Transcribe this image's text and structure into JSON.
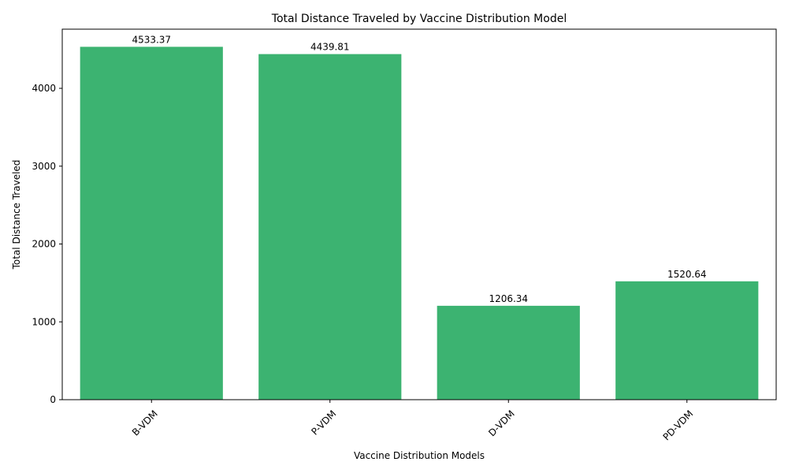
{
  "chart_data": {
    "type": "bar",
    "title": "Total Distance Traveled by Vaccine Distribution Model",
    "xlabel": "Vaccine Distribution Models",
    "ylabel": "Total Distance Traveled",
    "categories": [
      "B-VDM",
      "P-VDM",
      "D-VDM",
      "PD-VDM"
    ],
    "values": [
      4533.37,
      4439.81,
      1206.34,
      1520.64
    ],
    "data_labels": [
      "4533.37",
      "4439.81",
      "1206.34",
      "1520.64"
    ],
    "ylim": [
      0,
      4760
    ],
    "yticks": [
      0,
      1000,
      2000,
      3000,
      4000
    ],
    "x_tick_rotation_deg": 45,
    "bar_color": "#3cb371",
    "grid": false,
    "legend": "none"
  }
}
